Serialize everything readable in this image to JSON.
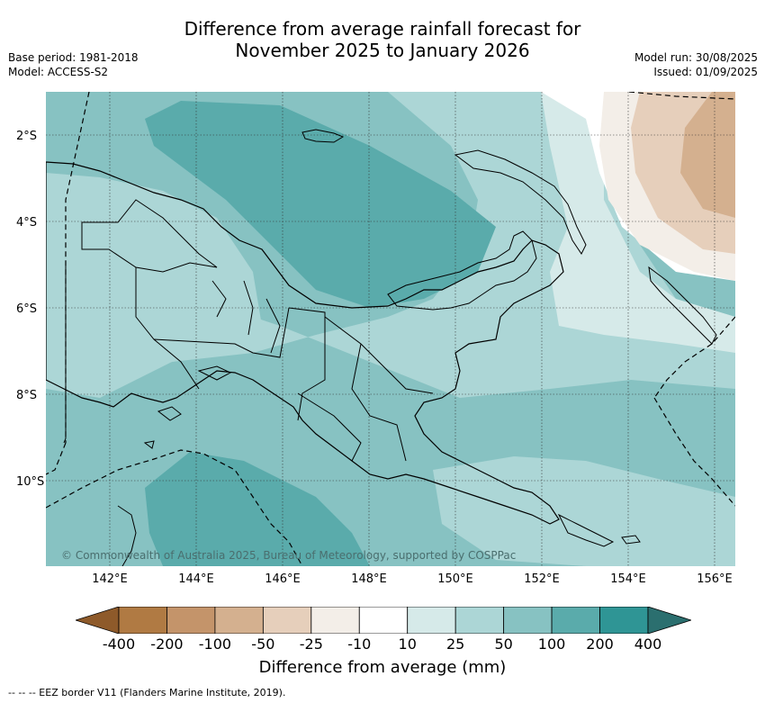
{
  "title_line1": "Difference from average rainfall forecast for",
  "title_line2": "November 2025 to January 2026",
  "left_meta": {
    "base_period": "Base period: 1981-2018",
    "model": "Model: ACCESS-S2"
  },
  "right_meta": {
    "model_run": "Model run: 30/08/2025",
    "issued": "Issued: 01/09/2025"
  },
  "y_ticks": [
    "2°S",
    "4°S",
    "6°S",
    "8°S",
    "10°S"
  ],
  "x_ticks": [
    "142°E",
    "144°E",
    "146°E",
    "148°E",
    "150°E",
    "152°E",
    "154°E",
    "156°E"
  ],
  "copyright": "© Commonwealth of Australia 2025, Bureau of Meteorology, supported by COSPPac",
  "colorbar": {
    "labels": [
      "-400",
      "-200",
      "-100",
      "-50",
      "-25",
      "-10",
      "10",
      "25",
      "50",
      "100",
      "200",
      "400"
    ],
    "colors": [
      "#8e5a2a",
      "#b07a43",
      "#c4946a",
      "#d4b08f",
      "#e6cfbb",
      "#f3eee8",
      "#ffffff",
      "#d6eae9",
      "#acd6d6",
      "#87c2c2",
      "#5aabab",
      "#2f9595",
      "#2b6f6f"
    ],
    "title": "Difference from average (mm)"
  },
  "footnote": "--  --  -- EEZ border V11 (Flanders Marine Institute, 2019)."
}
